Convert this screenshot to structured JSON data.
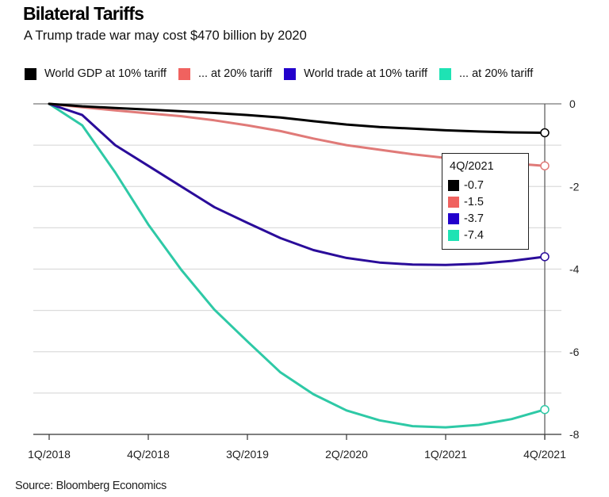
{
  "header": {
    "title": "Bilateral Tariffs",
    "subtitle": "A Trump trade war may cost $470 billion by 2020"
  },
  "source": "Source: Bloomberg Economics",
  "tooltip": {
    "title": "4Q/2021",
    "rows": [
      {
        "value": "-0.7",
        "color": "#000000"
      },
      {
        "value": "-1.5",
        "color": "#f0625f"
      },
      {
        "value": "-3.7",
        "color": "#2200cc"
      },
      {
        "value": "-7.4",
        "color": "#1ee3b4"
      }
    ]
  },
  "chart_data": {
    "type": "line",
    "title": "Bilateral Tariffs",
    "subtitle": "A Trump trade war may cost $470 billion by 2020",
    "xlabel": "",
    "ylabel": "",
    "x": [
      "1Q/2018",
      "2Q/2018",
      "3Q/2018",
      "4Q/2018",
      "1Q/2019",
      "2Q/2019",
      "3Q/2019",
      "4Q/2019",
      "1Q/2020",
      "2Q/2020",
      "3Q/2020",
      "4Q/2020",
      "1Q/2021",
      "2Q/2021",
      "3Q/2021",
      "4Q/2021"
    ],
    "x_tick_labels": [
      "1Q/2018",
      "4Q/2018",
      "3Q/2019",
      "2Q/2020",
      "1Q/2021",
      "4Q/2021"
    ],
    "x_tick_indices": [
      0,
      3,
      6,
      9,
      12,
      15
    ],
    "ylim": [
      -8,
      0
    ],
    "y_ticks": [
      0,
      -2,
      -4,
      -6,
      -8
    ],
    "y_tick_labels": [
      "0",
      "-2",
      "-4",
      "-6",
      "-8"
    ],
    "y_axis_side": "right",
    "grid": true,
    "grid_step": 1,
    "legend_position": "top",
    "series": [
      {
        "name": "World GDP at 10% tariff",
        "color": "#000000",
        "values": [
          0,
          -0.06,
          -0.1,
          -0.14,
          -0.18,
          -0.22,
          -0.27,
          -0.33,
          -0.42,
          -0.5,
          -0.56,
          -0.6,
          -0.64,
          -0.67,
          -0.69,
          -0.7
        ]
      },
      {
        "name": "... at 20% tariff",
        "color": "#f0625f",
        "line_color": "#e07a78",
        "values": [
          0,
          -0.08,
          -0.16,
          -0.23,
          -0.3,
          -0.4,
          -0.52,
          -0.66,
          -0.84,
          -1.0,
          -1.11,
          -1.22,
          -1.31,
          -1.38,
          -1.44,
          -1.5
        ]
      },
      {
        "name": "World trade at 10% tariff",
        "color": "#2200cc",
        "line_color": "#2a0c9a",
        "values": [
          0,
          -0.27,
          -1.0,
          -1.5,
          -2.0,
          -2.5,
          -2.88,
          -3.25,
          -3.54,
          -3.73,
          -3.84,
          -3.89,
          -3.9,
          -3.87,
          -3.8,
          -3.7
        ]
      },
      {
        "name": "... at 20% tariff",
        "color": "#1ee3b4",
        "line_color": "#2ec9a6",
        "values": [
          0,
          -0.52,
          -1.66,
          -2.92,
          -4.02,
          -4.98,
          -5.75,
          -6.5,
          -7.03,
          -7.42,
          -7.66,
          -7.8,
          -7.83,
          -7.77,
          -7.63,
          -7.4
        ]
      }
    ],
    "highlight": {
      "x": "4Q/2021",
      "values": [
        -0.7,
        -1.5,
        -3.7,
        -7.4
      ]
    }
  }
}
